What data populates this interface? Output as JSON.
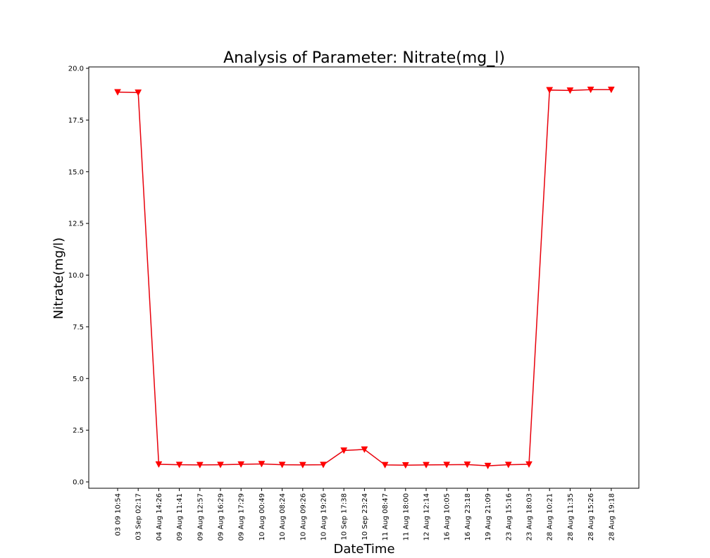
{
  "colors": {
    "series": "#ff0000",
    "line": "#e8000b",
    "axes": "#000000",
    "background": "#ffffff"
  },
  "chart_data": {
    "type": "line",
    "title": "Analysis of Parameter: Nitrate(mg_l)",
    "xlabel": "DateTime",
    "ylabel": "Nitrate(mg/l)",
    "ylim": [
      -0.3,
      20.05
    ],
    "yticks": [
      0.0,
      2.5,
      5.0,
      7.5,
      10.0,
      12.5,
      15.0,
      17.5,
      20.0
    ],
    "ytick_labels": [
      "0.0",
      "2.5",
      "5.0",
      "7.5",
      "10.0",
      "12.5",
      "15.0",
      "17.5",
      "20.0"
    ],
    "grid": false,
    "marker": "triangle-down",
    "categories": [
      "03 09 10:54",
      "03 Sep 02:17",
      "04 Aug 14:26",
      "09 Aug 11:41",
      "09 Aug 12:57",
      "09 Aug 16:29",
      "09 Aug 17:29",
      "10 Aug 00:49",
      "10 Aug 08:24",
      "10 Aug 09:26",
      "10 Aug 19:26",
      "10 Sep 17:38",
      "10 Sep 23:24",
      "11 Aug 08:47",
      "11 Aug 18:00",
      "12 Aug 12:14",
      "16 Aug 10:05",
      "16 Aug 23:18",
      "19 Aug 21:09",
      "23 Aug 15:16",
      "23 Aug 18:03",
      "28 Aug 10:21",
      "28 Aug 11:35",
      "28 Aug 15:26",
      "28 Aug 19:18"
    ],
    "series": [
      {
        "values": [
          18.85,
          18.83,
          0.85,
          0.83,
          0.82,
          0.83,
          0.85,
          0.87,
          0.83,
          0.82,
          0.83,
          1.52,
          1.57,
          0.82,
          0.81,
          0.82,
          0.83,
          0.84,
          0.78,
          0.83,
          0.85,
          18.95,
          18.93,
          18.97,
          18.97
        ]
      }
    ]
  }
}
